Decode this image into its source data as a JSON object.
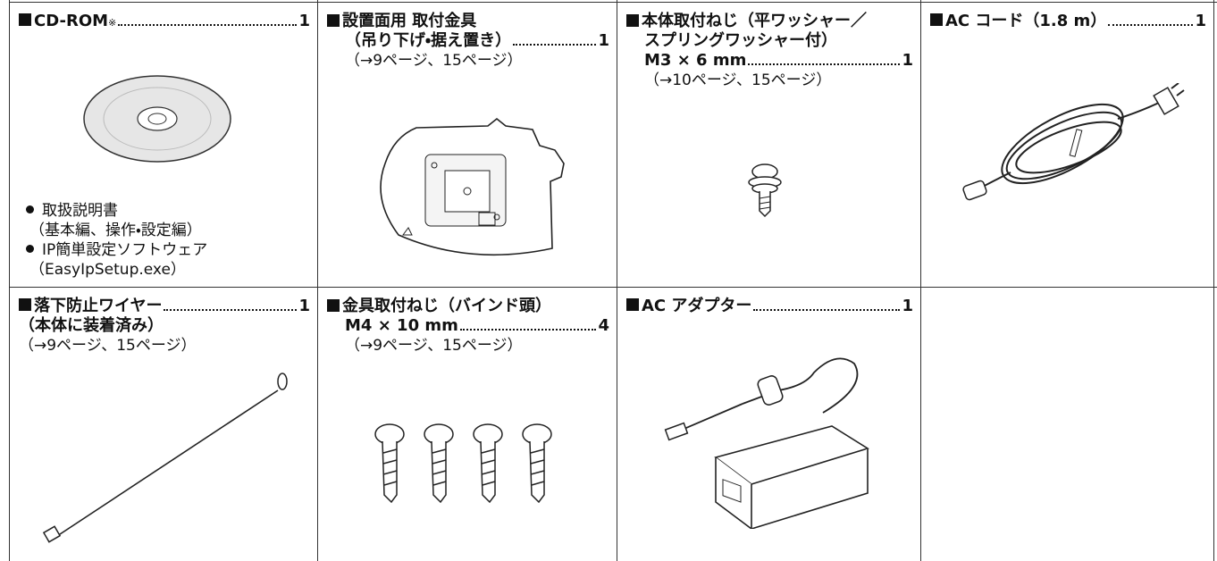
{
  "items": [
    {
      "heading": [
        "CD-ROM"
      ],
      "mark": "※",
      "quantity": "1",
      "bullets": [
        {
          "label": "取扱説明書",
          "sub": "（基本編、操作・設定編）"
        },
        {
          "label": "IP簡単設定ソフトウェア",
          "sub": "（EasyIpSetup.exe）"
        }
      ]
    },
    {
      "heading": [
        "設置面用 取付金具",
        "（吊り下げ・据え置き）"
      ],
      "quantity": "1",
      "ref": "（→9ページ、15ページ）"
    },
    {
      "heading": [
        "本体取付ねじ（平ワッシャー／",
        "スプリングワッシャー付）",
        "M3 × 6 mm"
      ],
      "quantity": "1",
      "ref": "（→10ページ、15ページ）"
    },
    {
      "heading": [
        "AC コード（1.8 m）"
      ],
      "quantity": "1"
    },
    {
      "heading": [
        "落下防止ワイヤー"
      ],
      "quantity": "1",
      "after": "（本体に装着済み）",
      "ref": "（→9ページ、15ページ）"
    },
    {
      "heading": [
        "金具取付ねじ（バインド頭）",
        "M4 × 10 mm"
      ],
      "quantity": "4",
      "ref": "（→9ページ、15ページ）"
    },
    {
      "heading": [
        "AC アダプター"
      ],
      "quantity": "1"
    }
  ]
}
